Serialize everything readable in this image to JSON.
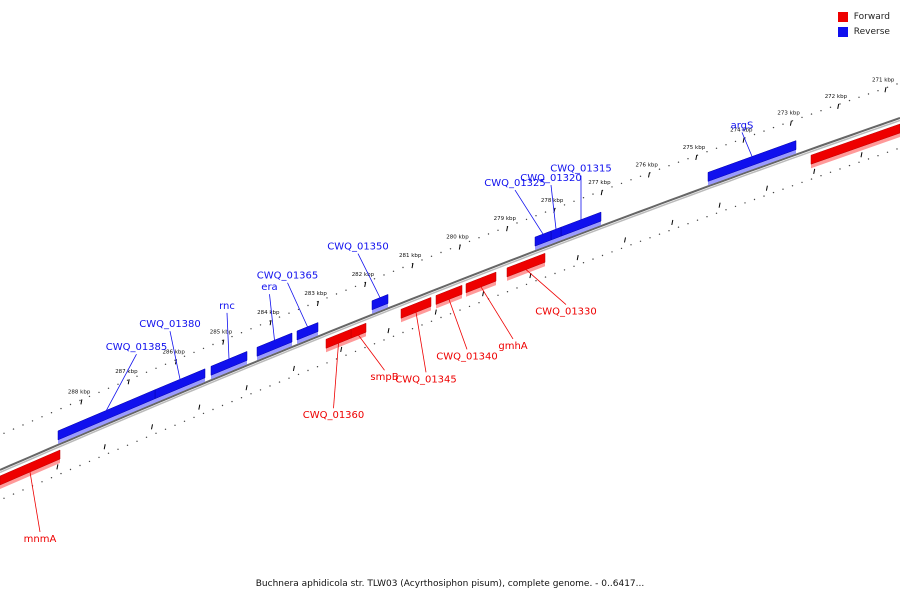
{
  "caption": "Buchnera aphidicola str. TLW03 (Acyrthosiphon pisum), complete genome. - 0..6417...",
  "legend": [
    {
      "label": "Forward",
      "color": "#ee0000"
    },
    {
      "label": "Reverse",
      "color": "#1010ee"
    }
  ],
  "colors": {
    "forward": "#ee0000",
    "reverse": "#1010ee",
    "axis": "#888888"
  },
  "axis": {
    "unit": "kbp",
    "tick_labels": [
      "271 kbp",
      "272 kbp",
      "273 kbp",
      "274 kbp",
      "275 kbp",
      "276 kbp",
      "277 kbp",
      "278 kbp",
      "279 kbp",
      "280 kbp",
      "281 kbp",
      "282 kbp",
      "283 kbp",
      "284 kbp",
      "285 kbp",
      "286 kbp",
      "287 kbp",
      "288 kbp"
    ]
  },
  "genes": [
    {
      "name": "argS",
      "strand": "reverse"
    },
    {
      "name": "CWQ_01315",
      "strand": "reverse"
    },
    {
      "name": "CWQ_01320",
      "strand": "reverse"
    },
    {
      "name": "CWQ_01325",
      "strand": "reverse"
    },
    {
      "name": "CWQ_01350",
      "strand": "reverse"
    },
    {
      "name": "CWQ_01365",
      "strand": "reverse"
    },
    {
      "name": "era",
      "strand": "reverse"
    },
    {
      "name": "rnc",
      "strand": "reverse"
    },
    {
      "name": "CWQ_01380",
      "strand": "reverse"
    },
    {
      "name": "CWQ_01385",
      "strand": "reverse"
    },
    {
      "name": "CWQ_01330",
      "strand": "forward"
    },
    {
      "name": "gmhA",
      "strand": "forward"
    },
    {
      "name": "CWQ_01340",
      "strand": "forward"
    },
    {
      "name": "CWQ_01345",
      "strand": "forward"
    },
    {
      "name": "smpB",
      "strand": "forward"
    },
    {
      "name": "CWQ_01360",
      "strand": "forward"
    },
    {
      "name": "mnmA",
      "strand": "forward"
    }
  ]
}
